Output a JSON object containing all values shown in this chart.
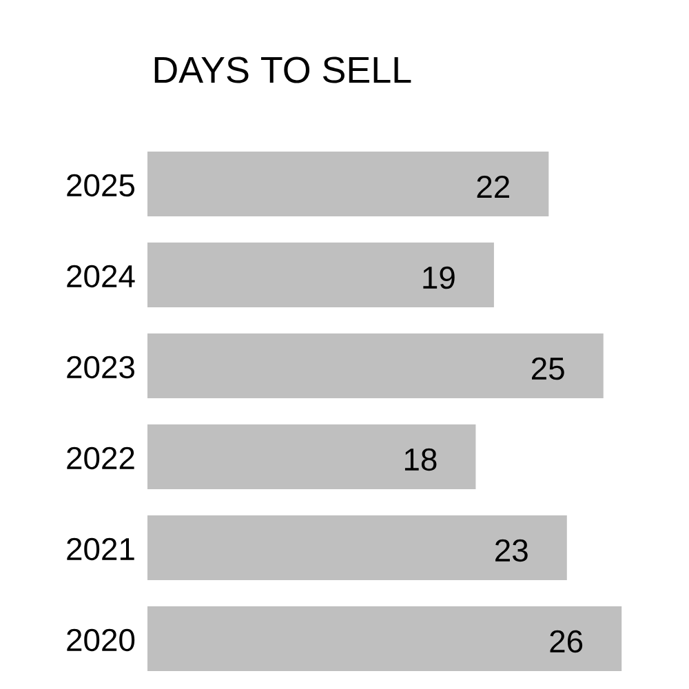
{
  "chart_data": {
    "type": "bar",
    "orientation": "horizontal",
    "title": "DAYS TO SELL",
    "categories": [
      "2025",
      "2024",
      "2023",
      "2022",
      "2021",
      "2020"
    ],
    "values": [
      22,
      19,
      25,
      18,
      23,
      26
    ],
    "color": "#bfbfbf",
    "data_labels": true
  }
}
